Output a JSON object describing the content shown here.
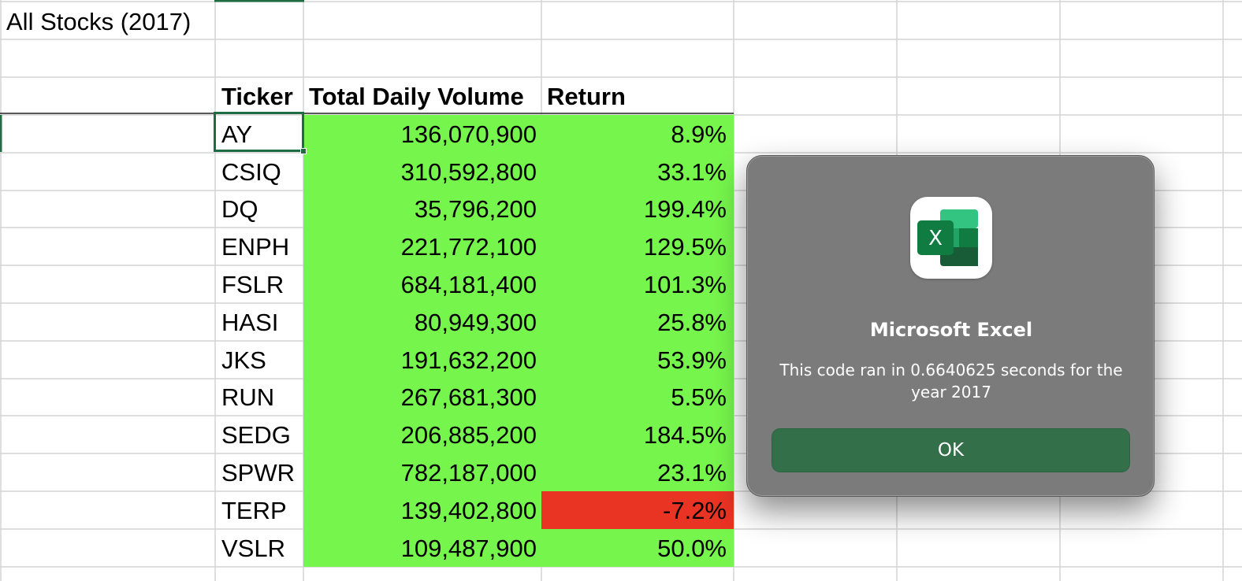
{
  "sheet": {
    "title": "All Stocks (2017)",
    "headers": {
      "ticker": "Ticker",
      "volume": "Total Daily Volume",
      "return": "Return"
    },
    "rows": [
      {
        "ticker": "AY",
        "volume": "136,070,900",
        "return": "8.9%",
        "status": "positive"
      },
      {
        "ticker": "CSIQ",
        "volume": "310,592,800",
        "return": "33.1%",
        "status": "positive"
      },
      {
        "ticker": "DQ",
        "volume": "35,796,200",
        "return": "199.4%",
        "status": "positive"
      },
      {
        "ticker": "ENPH",
        "volume": "221,772,100",
        "return": "129.5%",
        "status": "positive"
      },
      {
        "ticker": "FSLR",
        "volume": "684,181,400",
        "return": "101.3%",
        "status": "positive"
      },
      {
        "ticker": "HASI",
        "volume": "80,949,300",
        "return": "25.8%",
        "status": "positive"
      },
      {
        "ticker": "JKS",
        "volume": "191,632,200",
        "return": "53.9%",
        "status": "positive"
      },
      {
        "ticker": "RUN",
        "volume": "267,681,300",
        "return": "5.5%",
        "status": "positive"
      },
      {
        "ticker": "SEDG",
        "volume": "206,885,200",
        "return": "184.5%",
        "status": "positive"
      },
      {
        "ticker": "SPWR",
        "volume": "782,187,000",
        "return": "23.1%",
        "status": "positive"
      },
      {
        "ticker": "TERP",
        "volume": "139,402,800",
        "return": "-7.2%",
        "status": "negative"
      },
      {
        "ticker": "VSLR",
        "volume": "109,487,900",
        "return": "50.0%",
        "status": "positive"
      }
    ],
    "selected_cell_ticker": "AY"
  },
  "dialog": {
    "title": "Microsoft Excel",
    "message": "This code ran in 0.6640625 seconds for the year 2017",
    "ok_label": "OK",
    "icon": "excel-app-icon",
    "icon_letter": "X"
  },
  "colors": {
    "positive_fill": "#76f54c",
    "negative_fill": "#e93323",
    "gridline": "#d4d4d4",
    "selection": "#1f6b44",
    "dialog_bg": "#7b7b7b",
    "ok_button": "#33704a"
  }
}
